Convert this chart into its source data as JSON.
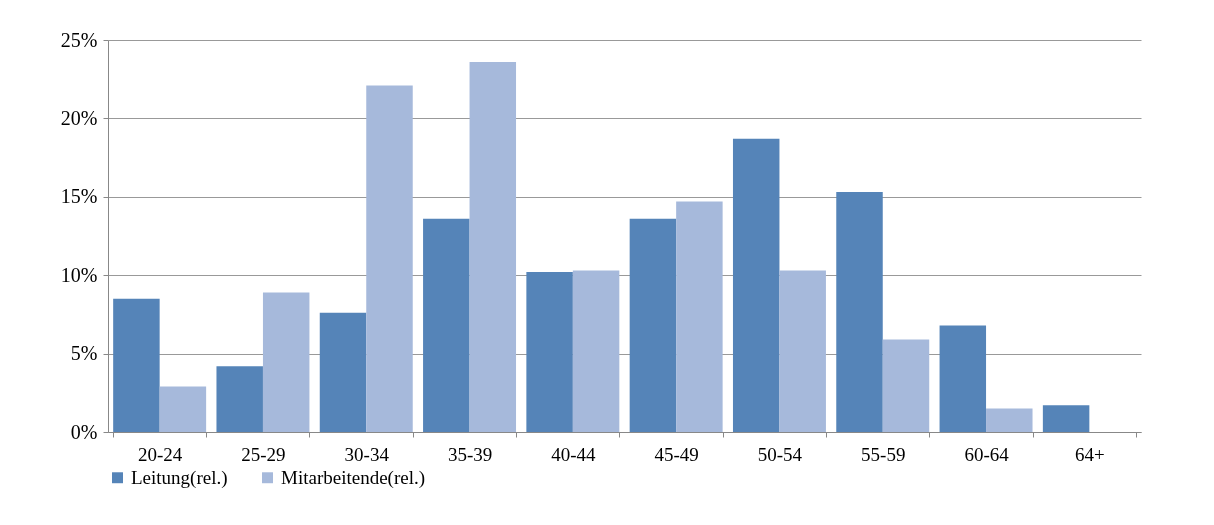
{
  "chart_data": {
    "type": "bar",
    "categories": [
      "20-24",
      "25-29",
      "30-34",
      "35-39",
      "40-44",
      "45-49",
      "50-54",
      "55-59",
      "60-64",
      "64+"
    ],
    "series": [
      {
        "name": "Leitung(rel.)",
        "color": "#5584b8",
        "values": [
          8.5,
          4.2,
          7.6,
          13.6,
          10.2,
          13.6,
          18.7,
          15.3,
          6.8,
          1.7
        ]
      },
      {
        "name": "Mitarbeitende(rel.)",
        "color": "#a6b9db",
        "values": [
          2.9,
          8.9,
          22.1,
          23.6,
          10.3,
          14.7,
          10.3,
          5.9,
          1.5,
          null
        ]
      }
    ],
    "ylim": [
      0,
      25
    ],
    "yticks": [
      {
        "value": 0,
        "label": "0%"
      },
      {
        "value": 5,
        "label": "5%"
      },
      {
        "value": 10,
        "label": "10%"
      },
      {
        "value": 15,
        "label": "15%"
      },
      {
        "value": 20,
        "label": "20%"
      },
      {
        "value": 25,
        "label": "25%"
      }
    ],
    "grid": "y",
    "legend": "bottom"
  }
}
